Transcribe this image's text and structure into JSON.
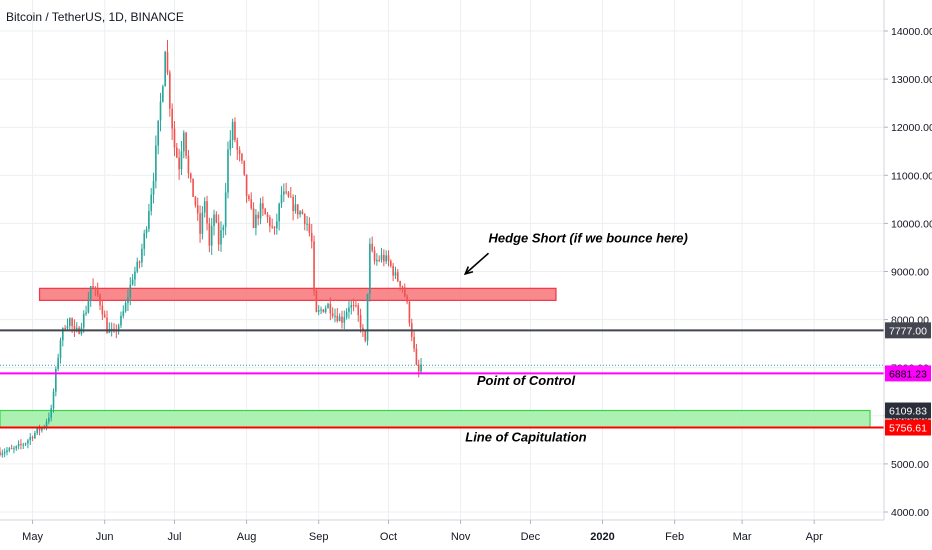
{
  "chart_title": "Bitcoin / TetherUS, 1D, BINANCE",
  "chart_data": {
    "type": "candlestick",
    "title": "Bitcoin / TetherUS, 1D, BINANCE",
    "ylim": [
      3900,
      14500
    ],
    "grid": true,
    "x_ticks": [
      {
        "label": "May",
        "day": 0
      },
      {
        "label": "Jun",
        "day": 31
      },
      {
        "label": "Jul",
        "day": 61
      },
      {
        "label": "Aug",
        "day": 92
      },
      {
        "label": "Sep",
        "day": 123
      },
      {
        "label": "Oct",
        "day": 153
      },
      {
        "label": "Nov",
        "day": 184
      },
      {
        "label": "Dec",
        "day": 214
      },
      {
        "label": "2020",
        "day": 245
      },
      {
        "label": "Feb",
        "day": 276
      },
      {
        "label": "Mar",
        "day": 305
      },
      {
        "label": "Apr",
        "day": 336
      }
    ],
    "y_ticks": [
      4000,
      5000,
      6000,
      7000,
      8000,
      9000,
      10000,
      11000,
      12000,
      13000,
      14000
    ],
    "y_tick_labels": [
      "4000.00",
      "5000.00",
      "6000.00",
      "7000.00",
      "8000.00",
      "9000.00",
      "10000.00",
      "11000.00",
      "12000.00",
      "13000.00",
      "14000.00"
    ],
    "price_path": [
      [
        -14,
        5250
      ],
      [
        -8,
        5300
      ],
      [
        -3,
        5450
      ],
      [
        0,
        5600
      ],
      [
        5,
        5800
      ],
      [
        8,
        6100
      ],
      [
        10,
        6900
      ],
      [
        12,
        7600
      ],
      [
        14,
        7900
      ],
      [
        16,
        8000
      ],
      [
        18,
        7700
      ],
      [
        20,
        7800
      ],
      [
        23,
        8200
      ],
      [
        25,
        8700
      ],
      [
        28,
        8500
      ],
      [
        30,
        8200
      ],
      [
        32,
        7800
      ],
      [
        35,
        7700
      ],
      [
        38,
        8000
      ],
      [
        40,
        8300
      ],
      [
        43,
        8900
      ],
      [
        46,
        9200
      ],
      [
        49,
        10000
      ],
      [
        52,
        11000
      ],
      [
        54,
        12000
      ],
      [
        56,
        13000
      ],
      [
        57,
        13700
      ],
      [
        59,
        12500
      ],
      [
        61,
        11600
      ],
      [
        63,
        11200
      ],
      [
        65,
        12000
      ],
      [
        67,
        11000
      ],
      [
        70,
        10400
      ],
      [
        72,
        9800
      ],
      [
        74,
        10500
      ],
      [
        76,
        9500
      ],
      [
        78,
        10200
      ],
      [
        80,
        9600
      ],
      [
        82,
        10000
      ],
      [
        84,
        11500
      ],
      [
        86,
        12000
      ],
      [
        88,
        11500
      ],
      [
        90,
        11200
      ],
      [
        92,
        10600
      ],
      [
        95,
        10000
      ],
      [
        98,
        10300
      ],
      [
        101,
        10100
      ],
      [
        104,
        9800
      ],
      [
        107,
        10600
      ],
      [
        110,
        10500
      ],
      [
        113,
        10300
      ],
      [
        116,
        10200
      ],
      [
        118,
        10000
      ],
      [
        120,
        9600
      ],
      [
        121,
        8500
      ],
      [
        122,
        8100
      ],
      [
        124,
        8200
      ],
      [
        127,
        8300
      ],
      [
        130,
        8100
      ],
      [
        133,
        8000
      ],
      [
        136,
        8300
      ],
      [
        139,
        8200
      ],
      [
        141,
        7900
      ],
      [
        143,
        7500
      ],
      [
        144,
        8600
      ],
      [
        145,
        9500
      ],
      [
        147,
        9200
      ],
      [
        150,
        9300
      ],
      [
        153,
        9200
      ],
      [
        156,
        8900
      ],
      [
        159,
        8700
      ],
      [
        161,
        8300
      ],
      [
        163,
        7700
      ],
      [
        165,
        7000
      ],
      [
        166,
        6900
      ],
      [
        167,
        7050
      ]
    ],
    "price_day_range": [
      -14,
      167
    ],
    "last_price": 7050,
    "levels": [
      {
        "name": "Point of Control",
        "value": 6881.23,
        "label": "6881.23",
        "color": "#ff00ff",
        "text_color": "#000000"
      },
      {
        "name": "",
        "value": 7777.0,
        "label": "7777.00",
        "color": "#434651",
        "text_color": "#ffffff"
      },
      {
        "name": "Line of Capitulation",
        "value": 5756.61,
        "label": "5756.61",
        "color": "#ff0000",
        "text_color": "#ffffff"
      }
    ],
    "zones": [
      {
        "name": "Hedge Short (if we bounce here)",
        "from_day": 3,
        "to_day": 225,
        "low": 8400,
        "high": 8650,
        "fill": "#f77c80",
        "stroke": "#f23645"
      },
      {
        "name": "",
        "from_day": -14,
        "to_day": 360,
        "low": 5756.61,
        "high": 6109.83,
        "fill": "#a3f0a8",
        "stroke": "#3bd24a",
        "tag": "6109.83",
        "tag_color": "#2a2e39"
      }
    ],
    "annotations": [
      {
        "text": "Hedge Short (if we bounce here)",
        "day": 196,
        "price": 9600,
        "anchor": "start"
      },
      {
        "text": "Point of Control",
        "day": 191,
        "price": 6640,
        "anchor": "start"
      },
      {
        "text": "Line of Capitulation",
        "day": 186,
        "price": 5470,
        "anchor": "start"
      }
    ],
    "arrow": {
      "from_day": 196,
      "from_price": 9380,
      "to_day": 186,
      "to_price": 8950
    },
    "colors": {
      "up": "#26a69a",
      "down": "#ef5350",
      "grid": "#eceff2",
      "axis_text": "#131722"
    }
  }
}
